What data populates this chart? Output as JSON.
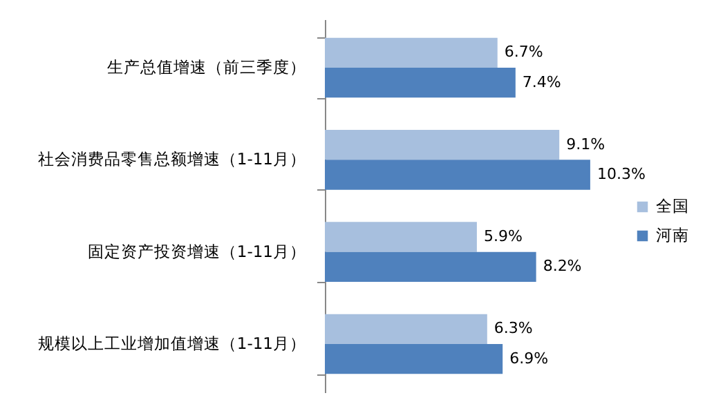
{
  "chart_data": {
    "type": "bar",
    "orientation": "horizontal",
    "categories": [
      "生产总值增速（前三季度）",
      "社会消费品零售总额增速（1-11月）",
      "固定资产投资增速（1-11月）",
      "规模以上工业增加值增速（1-11月）"
    ],
    "series": [
      {
        "name": "全国",
        "color": "#a7bfde",
        "values": [
          6.7,
          9.1,
          5.9,
          6.3
        ],
        "value_labels": [
          "6.7%",
          "9.1%",
          "5.9%",
          "6.3%"
        ]
      },
      {
        "name": "河南",
        "color": "#4f81bd",
        "values": [
          7.4,
          10.3,
          8.2,
          6.9
        ],
        "value_labels": [
          "7.4%",
          "10.3%",
          "8.2%",
          "6.9%"
        ]
      }
    ],
    "tick_labels": "y",
    "legend": "right"
  }
}
